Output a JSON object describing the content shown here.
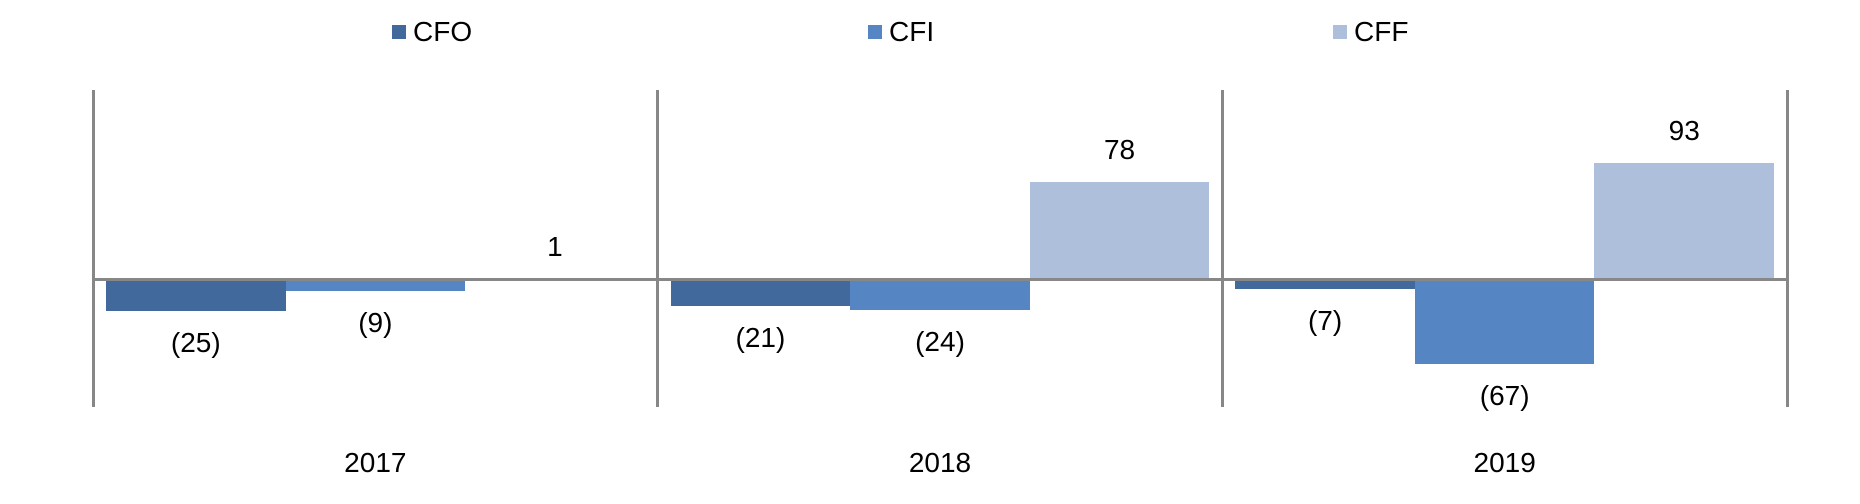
{
  "legend": [
    {
      "label": "CFO",
      "color": "#41699c"
    },
    {
      "label": "CFI",
      "color": "#5585c3"
    },
    {
      "label": "CFF",
      "color": "#aebfdc"
    }
  ],
  "chart_data": {
    "type": "bar",
    "title": "",
    "xlabel": "",
    "ylabel": "",
    "categories": [
      "2017",
      "2018",
      "2019"
    ],
    "series": [
      {
        "name": "CFO",
        "color": "#41699c",
        "values": [
          -25,
          -21,
          -7
        ],
        "data_labels": [
          "(25)",
          "(21)",
          "(7)"
        ]
      },
      {
        "name": "CFI",
        "color": "#5585c3",
        "values": [
          -9,
          -24,
          -67
        ],
        "data_labels": [
          "(9)",
          "(24)",
          "(67)"
        ]
      },
      {
        "name": "CFF",
        "color": "#aebfdc",
        "values": [
          1,
          78,
          93
        ],
        "data_labels": [
          "1",
          "78",
          "93"
        ]
      }
    ],
    "ylim": [
      -101,
      151
    ],
    "grid": false,
    "legend_position": "top",
    "axis_color": "#878787",
    "negative_number_format": "parentheses"
  }
}
